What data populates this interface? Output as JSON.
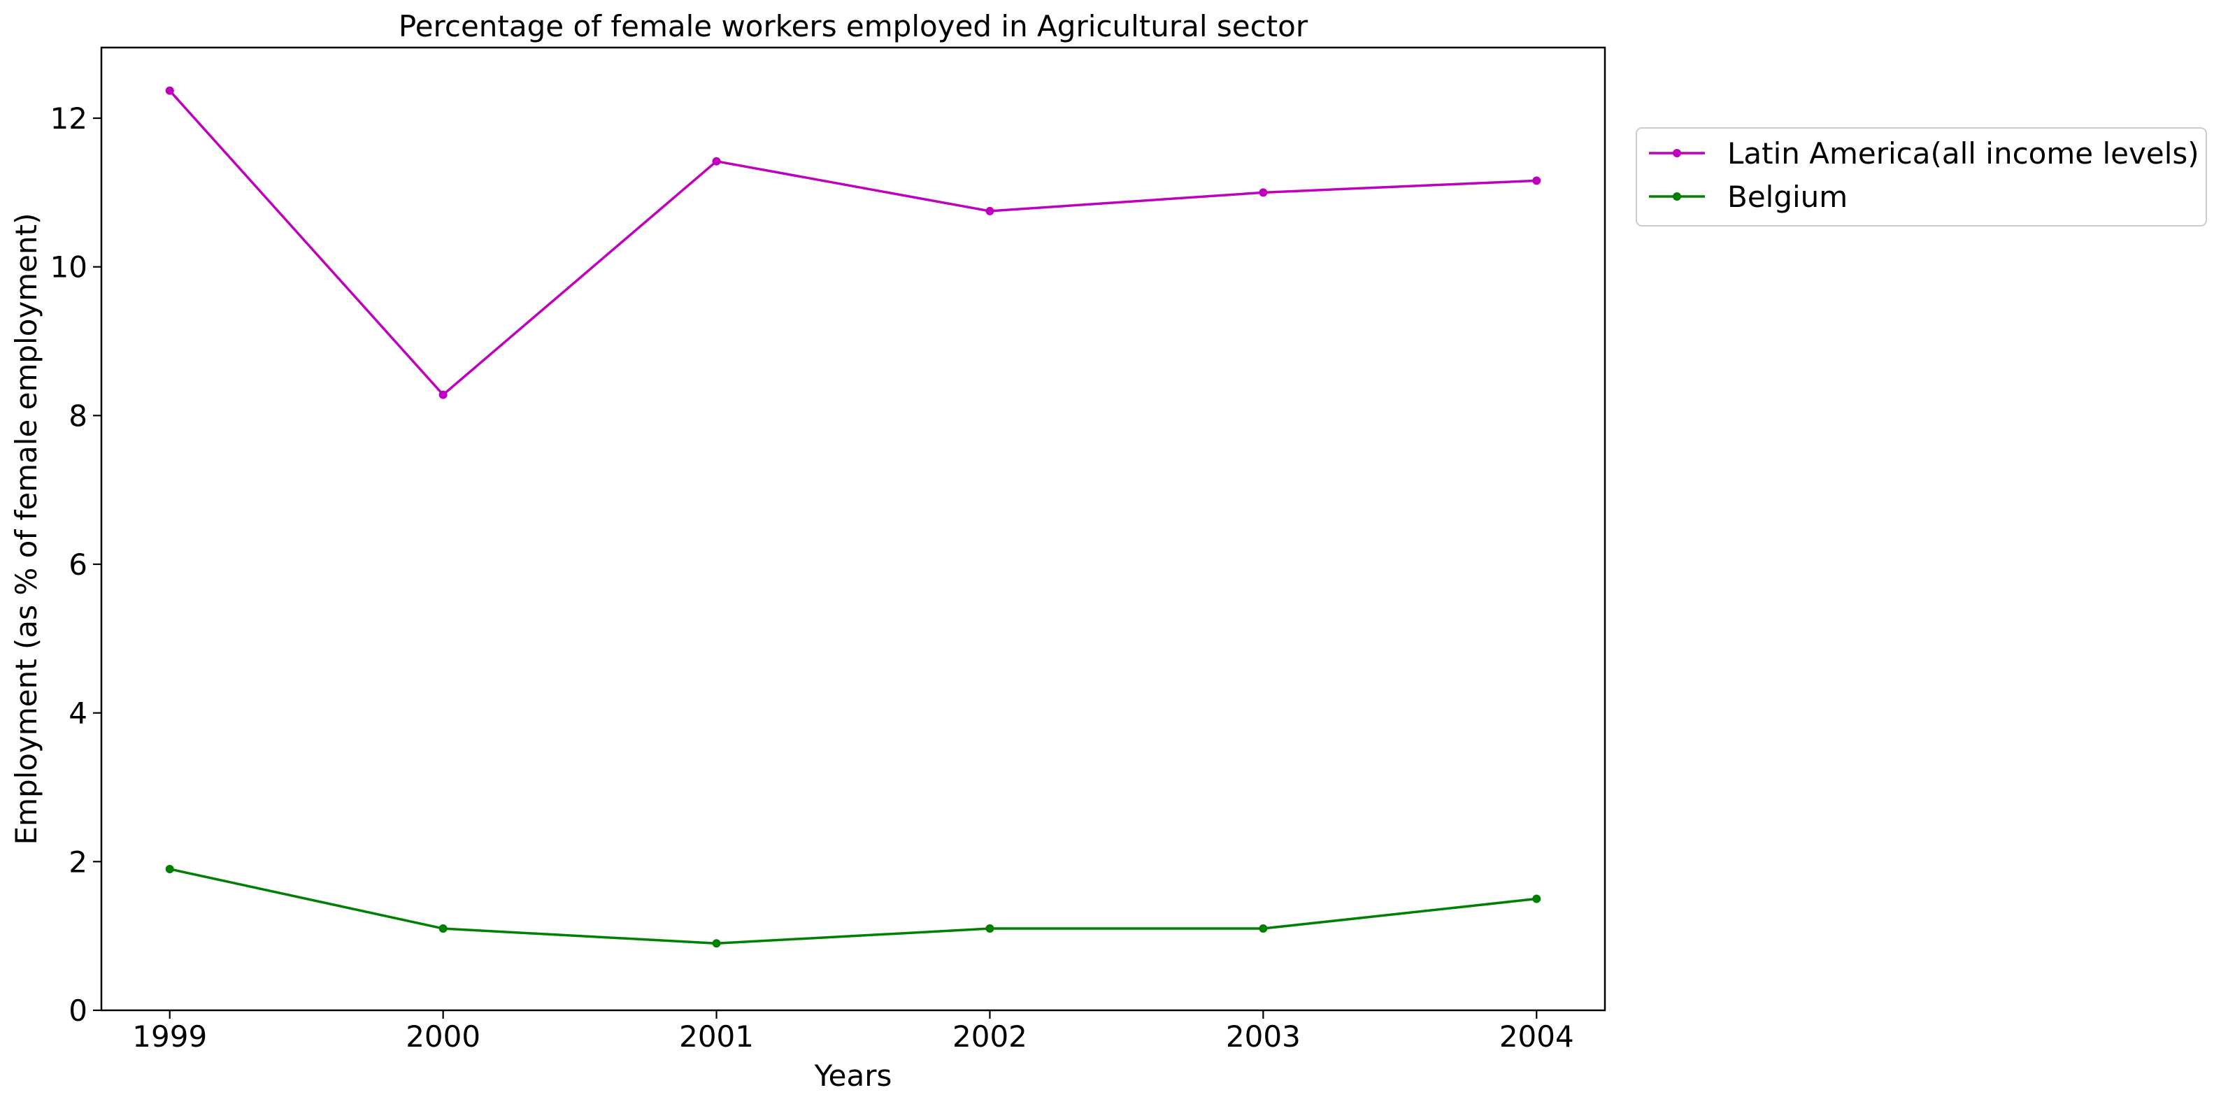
{
  "chart_data": {
    "type": "line",
    "title": "Percentage of female workers employed in Agricultural sector",
    "xlabel": "Years",
    "ylabel": "Employment (as % of female employment)",
    "x": [
      "1999",
      "2000",
      "2001",
      "2002",
      "2003",
      "2004"
    ],
    "x_numeric": [
      1999,
      2000,
      2001,
      2002,
      2003,
      2004
    ],
    "xlim": [
      1998.75,
      2004.25
    ],
    "ylim": [
      0,
      12.95
    ],
    "yticks": [
      0,
      2,
      4,
      6,
      8,
      10,
      12
    ],
    "grid": false,
    "legend_position": "upper-right-outside",
    "series": [
      {
        "name": "Latin America(all income levels)",
        "color": "#bf00bf",
        "values": [
          12.37,
          8.28,
          11.42,
          10.75,
          11.0,
          11.16
        ]
      },
      {
        "name": "Belgium",
        "color": "#008000",
        "values": [
          1.9,
          1.1,
          0.9,
          1.1,
          1.1,
          1.5
        ]
      }
    ]
  }
}
